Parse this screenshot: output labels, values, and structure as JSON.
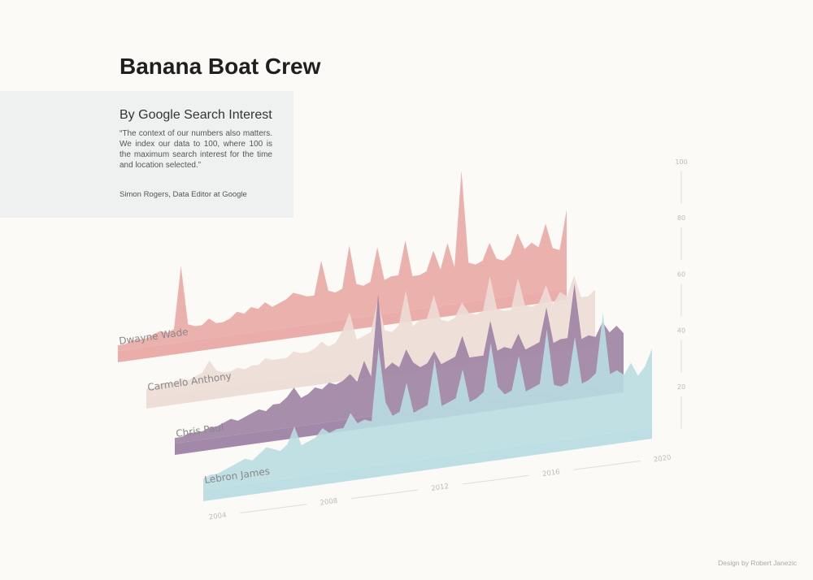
{
  "chart_data": {
    "type": "ridgeline",
    "title": "Banana Boat Crew",
    "subtitle": "By Google Search Interest",
    "quote": "“The context of our numbers also matters. We index our data to 100, where 100 is the maximum search interest for the time and location selected.”",
    "quote_source": "Simon Rogers, Data Editor at Google",
    "credit": "Design by Robert Janezic",
    "x": [
      2004,
      2004.25,
      2004.5,
      2004.75,
      2005,
      2005.25,
      2005.5,
      2005.75,
      2006,
      2006.25,
      2006.5,
      2006.75,
      2007,
      2007.25,
      2007.5,
      2007.75,
      2008,
      2008.25,
      2008.5,
      2008.75,
      2009,
      2009.25,
      2009.5,
      2009.75,
      2010,
      2010.25,
      2010.5,
      2010.75,
      2011,
      2011.25,
      2011.5,
      2011.75,
      2012,
      2012.25,
      2012.5,
      2012.75,
      2013,
      2013.25,
      2013.5,
      2013.75,
      2014,
      2014.25,
      2014.5,
      2014.75,
      2015,
      2015.25,
      2015.5,
      2015.75,
      2016,
      2016.25,
      2016.5,
      2016.75,
      2017,
      2017.25,
      2017.5,
      2017.75,
      2018,
      2018.25,
      2018.5,
      2018.75,
      2019,
      2019.25,
      2019.5,
      2019.75,
      2020
    ],
    "xlim": [
      2004,
      2020
    ],
    "xticks": [
      2004,
      2008,
      2012,
      2016,
      2020
    ],
    "ylim": [
      0,
      100
    ],
    "yticks": [
      20,
      40,
      60,
      80,
      100
    ],
    "series": [
      {
        "name": "Dwayne Wade",
        "color": "#e9a9a5",
        "values": [
          2,
          2,
          3,
          3,
          3,
          4,
          5,
          4,
          5,
          27,
          6,
          5,
          5,
          7,
          5,
          5,
          6,
          8,
          7,
          9,
          8,
          10,
          8,
          9,
          10,
          12,
          11,
          10,
          10,
          22,
          11,
          10,
          11,
          26,
          12,
          11,
          12,
          24,
          12,
          13,
          13,
          25,
          12,
          12,
          13,
          20,
          13,
          22,
          13,
          47,
          14,
          13,
          14,
          20,
          14,
          13,
          15,
          22,
          16,
          18,
          16,
          24,
          15,
          14,
          28
        ]
      },
      {
        "name": "Carmelo Anthony",
        "color": "#eddcd6",
        "values": [
          3,
          3,
          4,
          4,
          4,
          5,
          4,
          5,
          6,
          10,
          6,
          5,
          5,
          6,
          5,
          6,
          6,
          8,
          7,
          7,
          7,
          9,
          8,
          8,
          9,
          11,
          9,
          10,
          14,
          20,
          10,
          11,
          12,
          23,
          12,
          11,
          13,
          25,
          12,
          14,
          14,
          22,
          13,
          12,
          13,
          18,
          14,
          13,
          14,
          26,
          14,
          13,
          13,
          24,
          14,
          13,
          14,
          20,
          13,
          17,
          15,
          22,
          14,
          14,
          16
        ]
      },
      {
        "name": "Chris Paul",
        "color": "#9d83a4",
        "values": [
          2,
          2,
          3,
          3,
          3,
          4,
          4,
          5,
          6,
          5,
          6,
          7,
          8,
          7,
          9,
          9,
          11,
          14,
          10,
          11,
          13,
          12,
          14,
          13,
          14,
          16,
          13,
          20,
          14,
          43,
          16,
          18,
          16,
          22,
          17,
          15,
          16,
          20,
          15,
          16,
          17,
          24,
          16,
          16,
          16,
          28,
          17,
          18,
          17,
          22,
          16,
          17,
          18,
          30,
          17,
          18,
          18,
          37,
          17,
          18,
          17,
          22,
          18,
          20,
          17
        ]
      },
      {
        "name": "Lebron James",
        "color": "#b9dde1",
        "values": [
          4,
          5,
          5,
          6,
          7,
          8,
          9,
          8,
          10,
          12,
          11,
          10,
          12,
          18,
          11,
          12,
          13,
          16,
          14,
          15,
          15,
          20,
          16,
          17,
          16,
          42,
          22,
          17,
          18,
          28,
          17,
          18,
          19,
          35,
          18,
          19,
          20,
          30,
          18,
          19,
          21,
          38,
          22,
          19,
          20,
          32,
          19,
          20,
          21,
          40,
          20,
          19,
          20,
          36,
          19,
          20,
          22,
          43,
          21,
          22,
          20,
          24,
          19,
          22,
          28
        ]
      }
    ]
  }
}
